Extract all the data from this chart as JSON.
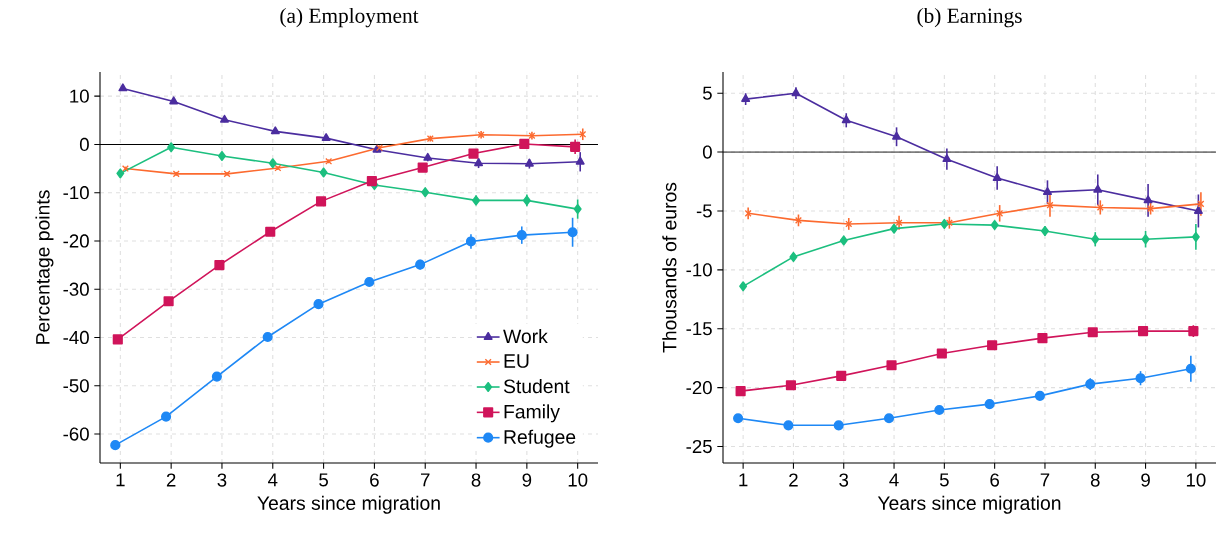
{
  "chart_data": [
    {
      "type": "line",
      "title": "(a) Employment",
      "xlabel": "Years since migration",
      "ylabel": "Percentage points",
      "xlim": [
        0.6,
        10.4
      ],
      "ylim": [
        -66,
        15
      ],
      "xticks": [
        1,
        2,
        3,
        4,
        5,
        6,
        7,
        8,
        9,
        10
      ],
      "yticks": [
        -60,
        -50,
        -40,
        -30,
        -20,
        -10,
        0,
        10
      ],
      "grid": true,
      "legend": "bottom right",
      "line_style": "solid",
      "ref_lines": [
        {
          "axis": "y",
          "value": 0
        }
      ],
      "series": [
        {
          "name": "Work",
          "color": "#4b2d9f",
          "marker": "triangle",
          "x": [
            1.05,
            2.05,
            3.05,
            4.05,
            5.05,
            6.05,
            7.05,
            8.05,
            9.05,
            10.05
          ],
          "values": [
            11.6,
            8.9,
            5.1,
            2.7,
            1.3,
            -1.1,
            -2.8,
            -3.9,
            -4.0,
            -3.6
          ],
          "errors": [
            0.5,
            0.5,
            0.5,
            0.5,
            0.5,
            0.6,
            0.7,
            1.0,
            1.0,
            2.0
          ]
        },
        {
          "name": "EU",
          "color": "#fc6a2f",
          "marker": "cross",
          "x": [
            1.1,
            2.1,
            3.1,
            4.1,
            5.1,
            6.1,
            7.1,
            8.1,
            9.1,
            10.1
          ],
          "values": [
            -5.0,
            -6.1,
            -6.1,
            -4.9,
            -3.5,
            -0.7,
            1.2,
            2.0,
            1.8,
            2.1
          ],
          "errors": [
            0.4,
            0.4,
            0.4,
            0.4,
            0.4,
            0.5,
            0.6,
            0.8,
            0.8,
            1.2
          ]
        },
        {
          "name": "Student",
          "color": "#1cbf7f",
          "marker": "diamond",
          "x": [
            1,
            2,
            3,
            4,
            5,
            6,
            7,
            8,
            9,
            10
          ],
          "values": [
            -6.0,
            -0.6,
            -2.4,
            -3.9,
            -5.8,
            -8.4,
            -9.9,
            -11.6,
            -11.6,
            -13.4
          ],
          "errors": [
            0.5,
            0.5,
            0.5,
            0.5,
            0.6,
            0.7,
            0.8,
            1.0,
            1.2,
            2.0
          ]
        },
        {
          "name": "Family",
          "color": "#d0145a",
          "marker": "square",
          "x": [
            0.95,
            1.95,
            2.95,
            3.95,
            4.95,
            5.95,
            6.95,
            7.95,
            8.95,
            9.95
          ],
          "values": [
            -40.4,
            -32.5,
            -25.0,
            -18.1,
            -11.8,
            -7.6,
            -4.8,
            -1.9,
            0.1,
            -0.5
          ],
          "errors": [
            0.5,
            0.5,
            0.5,
            0.5,
            0.5,
            0.6,
            0.7,
            0.8,
            1.0,
            1.5
          ]
        },
        {
          "name": "Refugee",
          "color": "#1e88f5",
          "marker": "circle",
          "x": [
            0.9,
            1.9,
            2.9,
            3.9,
            4.9,
            5.9,
            6.9,
            7.9,
            8.9,
            9.9
          ],
          "values": [
            -62.3,
            -56.4,
            -48.1,
            -39.9,
            -33.1,
            -28.5,
            -24.9,
            -20.1,
            -18.8,
            -18.2
          ],
          "errors": [
            0.5,
            0.5,
            0.5,
            0.5,
            0.6,
            0.7,
            1.0,
            1.5,
            1.8,
            3.0
          ]
        }
      ]
    },
    {
      "type": "line",
      "title": "(b) Earnings",
      "xlabel": "Years since migration",
      "ylabel": "Thousands of euros",
      "xlim": [
        0.6,
        10.4
      ],
      "ylim": [
        -26.4,
        6.8
      ],
      "xticks": [
        1,
        2,
        3,
        4,
        5,
        6,
        7,
        8,
        9,
        10
      ],
      "yticks": [
        -25,
        -20,
        -15,
        -10,
        -5,
        0,
        5
      ],
      "grid": true,
      "line_style": "solid",
      "ref_lines": [
        {
          "axis": "y",
          "value": 0
        }
      ],
      "series": [
        {
          "color": "#4b2d9f",
          "marker": "triangle",
          "x": [
            1.05,
            2.05,
            3.05,
            4.05,
            5.05,
            6.05,
            7.05,
            8.05,
            9.05,
            10.05
          ],
          "values": [
            4.5,
            5.0,
            2.7,
            1.3,
            -0.6,
            -2.2,
            -3.4,
            -3.2,
            -4.1,
            -5.0
          ],
          "errors": [
            0.5,
            0.5,
            0.6,
            0.8,
            0.9,
            1.0,
            1.0,
            1.3,
            1.4,
            1.4
          ]
        },
        {
          "color": "#fc6a2f",
          "marker": "cross",
          "x": [
            1.1,
            2.1,
            3.1,
            4.1,
            5.1,
            6.1,
            7.1,
            8.1,
            9.1,
            10.1
          ],
          "values": [
            -5.2,
            -5.8,
            -6.1,
            -6.0,
            -6.0,
            -5.2,
            -4.5,
            -4.7,
            -4.8,
            -4.4
          ],
          "errors": [
            0.5,
            0.5,
            0.5,
            0.6,
            0.5,
            0.7,
            1.0,
            0.6,
            0.5,
            1.0
          ]
        },
        {
          "color": "#1cbf7f",
          "marker": "diamond",
          "x": [
            1,
            2,
            3,
            4,
            5,
            6,
            7,
            8,
            9,
            10
          ],
          "values": [
            -11.4,
            -8.9,
            -7.5,
            -6.5,
            -6.1,
            -6.2,
            -6.7,
            -7.4,
            -7.4,
            -7.2
          ],
          "errors": [
            0.3,
            0.3,
            0.3,
            0.3,
            0.3,
            0.3,
            0.4,
            0.6,
            0.7,
            1.1
          ]
        },
        {
          "color": "#d0145a",
          "marker": "square",
          "x": [
            0.95,
            1.95,
            2.95,
            3.95,
            4.95,
            5.95,
            6.95,
            7.95,
            8.95,
            9.95
          ],
          "values": [
            -20.3,
            -19.8,
            -19.0,
            -18.1,
            -17.1,
            -16.4,
            -15.8,
            -15.3,
            -15.2,
            -15.2
          ],
          "errors": [
            0.3,
            0.3,
            0.3,
            0.3,
            0.3,
            0.3,
            0.3,
            0.3,
            0.3,
            0.5
          ]
        },
        {
          "color": "#1e88f5",
          "marker": "circle",
          "x": [
            0.9,
            1.9,
            2.9,
            3.9,
            4.9,
            5.9,
            6.9,
            7.9,
            8.9,
            9.9
          ],
          "values": [
            -22.6,
            -23.2,
            -23.2,
            -22.6,
            -21.9,
            -21.4,
            -20.7,
            -19.7,
            -19.2,
            -18.4
          ],
          "errors": [
            0.3,
            0.3,
            0.3,
            0.3,
            0.3,
            0.3,
            0.3,
            0.5,
            0.6,
            1.1
          ]
        }
      ]
    }
  ]
}
